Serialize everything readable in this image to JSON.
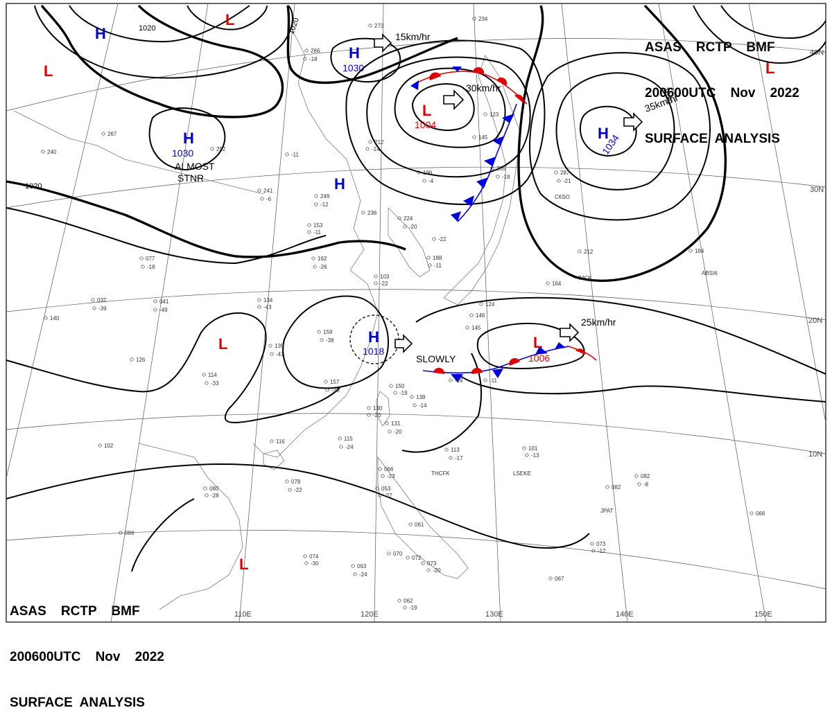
{
  "header": {
    "line1": "ASAS    RCTP    BMF",
    "line2": "200600UTC    Nov    2022",
    "line3": "SURFACE  ANALYSIS"
  },
  "footer": {
    "line1": "ASAS    RCTP    BMF",
    "line2": "200600UTC    Nov    2022",
    "line3": "SURFACE  ANALYSIS"
  },
  "longitudes": [
    "110E",
    "120E",
    "130E",
    "140E",
    "150E"
  ],
  "latitudes": [
    "40N",
    "30N",
    "20N",
    "10N"
  ],
  "isobar_labels": [
    "1020",
    "1020",
    "1020",
    "1020"
  ],
  "pressure_systems": [
    {
      "id": "h-1030-north",
      "type": "H",
      "pressure": "1030"
    },
    {
      "id": "h-1030-west",
      "type": "H",
      "pressure": "1030"
    },
    {
      "id": "h-1034-east",
      "type": "H",
      "pressure": "1034"
    },
    {
      "id": "h-1018-south",
      "type": "H",
      "pressure": "1018"
    },
    {
      "id": "h-north-nw",
      "type": "H",
      "pressure": ""
    },
    {
      "id": "h-central",
      "type": "H",
      "pressure": ""
    },
    {
      "id": "l-1004",
      "type": "L",
      "pressure": "1004"
    },
    {
      "id": "l-1006",
      "type": "L",
      "pressure": "1006"
    },
    {
      "id": "l-top",
      "type": "L",
      "pressure": ""
    },
    {
      "id": "l-nw",
      "type": "L",
      "pressure": ""
    },
    {
      "id": "l-ne",
      "type": "L",
      "pressure": ""
    },
    {
      "id": "l-west",
      "type": "L",
      "pressure": ""
    },
    {
      "id": "l-southwest",
      "type": "L",
      "pressure": ""
    }
  ],
  "motion_labels": {
    "m1": "15km/hr",
    "m2": "30km/hr",
    "m3": "35km/hr",
    "m4": "25km/hr",
    "m5": "SLOWLY"
  },
  "notes": {
    "almost": "ALMOST",
    "stnr": "STNR"
  },
  "stations": [
    {
      "code": "THCFK"
    },
    {
      "code": "LSEKE"
    },
    {
      "code": "7JCK"
    },
    {
      "code": "ABSI6"
    },
    {
      "code": "C6SO"
    },
    {
      "code": "JPAT"
    }
  ],
  "station_values": [
    "273",
    "266",
    "-18",
    "234",
    "267",
    "240",
    "252",
    "-11",
    "241",
    "-6",
    "249",
    "-12",
    "236",
    "224",
    "-20",
    "196",
    "-4",
    "205",
    "-18",
    "145",
    "123",
    "212",
    "-14",
    "-22",
    "287",
    "-21",
    "212",
    "184",
    "162",
    "-26",
    "153",
    "-11",
    "103",
    "-22",
    "188",
    "-11",
    "077",
    "-18",
    "032",
    "-39",
    "041",
    "-49",
    "134",
    "-43",
    "140",
    "126",
    "139",
    "-41",
    "159",
    "-38",
    "157",
    "-35",
    "150",
    "-19",
    "138",
    "-14",
    "130",
    "-20",
    "131",
    "-20",
    "114",
    "-33",
    "116",
    "115",
    "-24",
    "113",
    "-17",
    "101",
    "-13",
    "102",
    "078",
    "-22",
    "080",
    "-28",
    "066",
    "-23",
    "053",
    "-27",
    "061",
    "070",
    "072",
    "073",
    "-20",
    "063",
    "-24",
    "074",
    "-30",
    "062",
    "-19",
    "067",
    "073",
    "-12",
    "082",
    "082",
    "-8",
    "066",
    "084",
    "164",
    "146",
    "145",
    "124",
    "-16",
    "-11"
  ]
}
